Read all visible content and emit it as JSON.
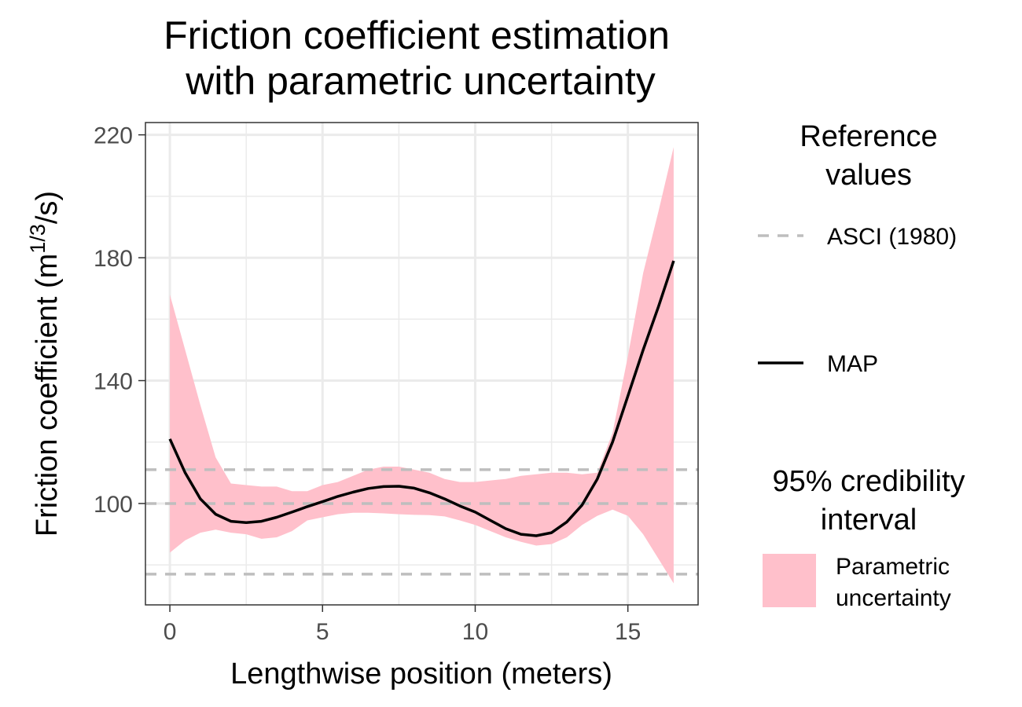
{
  "chart_data": {
    "type": "line",
    "title_lines": [
      "Friction coefficient estimation",
      "with parametric uncertainty"
    ],
    "xlabel": "Lengthwise position (meters)",
    "ylabel": {
      "prefix": "Friction coefficient (m",
      "superscript": "1/3",
      "suffix": "/s)"
    },
    "xlim": [
      -0.8,
      17.3
    ],
    "ylim": [
      67,
      224
    ],
    "x_ticks": [
      "0",
      "5",
      "10",
      "15"
    ],
    "x_tick_values": [
      0,
      5,
      10,
      15
    ],
    "y_ticks": [
      "100",
      "140",
      "180",
      "220"
    ],
    "y_tick_values": [
      100,
      140,
      180,
      220
    ],
    "grid": true,
    "legend_placement": "right",
    "colors": {
      "band": "#ffc0cb",
      "map": "#000000",
      "reference": "#bebebe",
      "grid": "#ebebeb",
      "panel_border": "#333333"
    },
    "reference_lines": {
      "name": "ASCI (1980)",
      "values": [
        77,
        100,
        111
      ]
    },
    "map_series": {
      "name": "MAP",
      "x": [
        0,
        0.5,
        1,
        1.5,
        2,
        2.5,
        3,
        3.5,
        4,
        4.5,
        5,
        5.5,
        6,
        6.5,
        7,
        7.5,
        8,
        8.5,
        9,
        9.5,
        10,
        10.5,
        11,
        11.5,
        12,
        12.5,
        13,
        13.5,
        14,
        14.5,
        15,
        15.5,
        16,
        16.5
      ],
      "y": [
        121,
        110,
        101.5,
        96.5,
        94.2,
        93.8,
        94.2,
        95.5,
        97.2,
        99,
        100.6,
        102.3,
        103.7,
        104.9,
        105.5,
        105.6,
        105,
        103.5,
        101.5,
        99.2,
        97.2,
        94.5,
        91.8,
        90,
        89.5,
        90.5,
        94,
        99.5,
        108,
        120,
        135,
        150,
        164,
        179
      ]
    },
    "band_series": {
      "name": "Parametric uncertainty",
      "x": [
        0,
        0.5,
        1,
        1.5,
        2,
        2.5,
        3,
        3.5,
        4,
        4.5,
        5,
        5.5,
        6,
        6.5,
        7,
        7.5,
        8,
        8.5,
        9,
        9.5,
        10,
        10.5,
        11,
        11.5,
        12,
        12.5,
        13,
        13.5,
        14,
        14.5,
        15,
        15.5,
        16,
        16.5
      ],
      "lower": [
        84,
        88,
        90.5,
        91.5,
        90.5,
        90,
        88.5,
        89,
        91,
        94.5,
        95.5,
        96.5,
        97,
        97,
        96.8,
        96.5,
        96.3,
        96.2,
        95.8,
        94.5,
        93,
        91,
        89,
        87.5,
        86.3,
        86.8,
        89,
        93,
        96,
        98,
        96,
        90,
        82,
        74
      ],
      "upper": [
        168,
        150,
        132,
        115,
        106.5,
        106,
        105.5,
        105.5,
        104,
        104,
        106,
        107,
        109,
        111,
        112,
        112,
        111,
        110,
        108,
        107,
        107,
        107.5,
        108,
        109,
        109.5,
        110,
        110,
        109.5,
        110,
        123,
        148,
        175,
        195,
        216
      ]
    }
  },
  "legend": {
    "reference_title_lines": [
      "Reference",
      "values"
    ],
    "reference_label": "ASCI (1980)",
    "map_label": "MAP",
    "interval_title_lines": [
      "95% credibility",
      "interval"
    ],
    "band_label_lines": [
      "Parametric",
      "uncertainty"
    ]
  }
}
